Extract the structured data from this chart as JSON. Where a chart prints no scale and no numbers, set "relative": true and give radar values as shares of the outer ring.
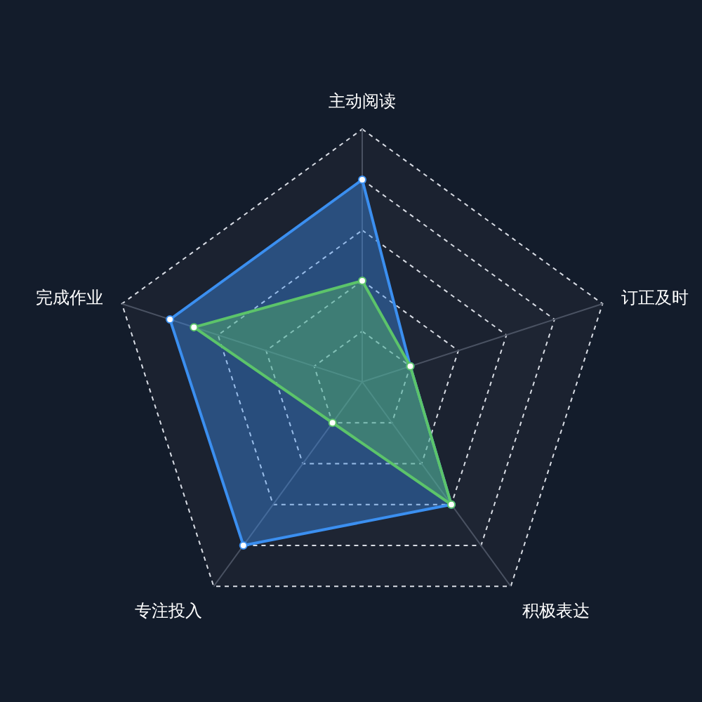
{
  "chart_data": {
    "type": "radar",
    "relative": true,
    "categories": [
      "主动阅读",
      "订正及时",
      "积极表达",
      "专注投入",
      "完成作业"
    ],
    "series": [
      {
        "color": "#3b8ff0",
        "values": [
          0.8,
          0.2,
          0.6,
          0.8,
          0.8
        ]
      },
      {
        "color": "#5cc46a",
        "values": [
          0.4,
          0.2,
          0.6,
          0.2,
          0.7
        ]
      }
    ]
  }
}
